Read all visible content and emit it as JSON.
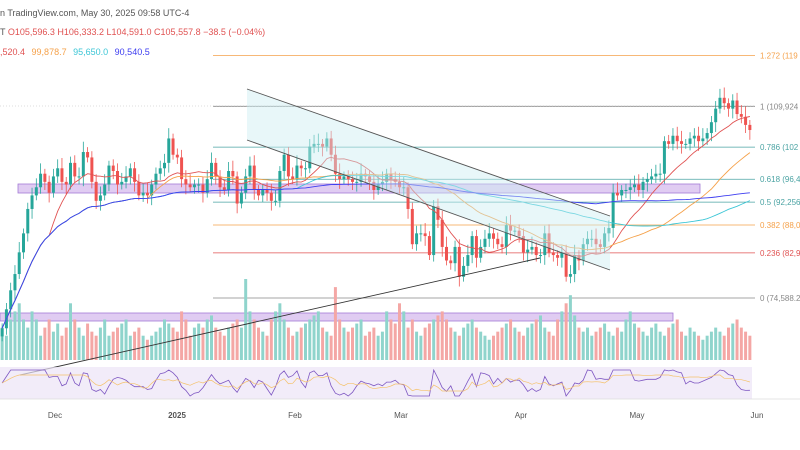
{
  "header": {
    "source": "n TradingView.com, May 30, 2025 09:58 UTC-4",
    "symbol_tail": "T",
    "open": "O105,596.3",
    "high": "H106,333.2",
    "low": "L104,591.0",
    "close": "C105,557.8",
    "change": "−38.5 (−0.04%)"
  },
  "ma_values": {
    "ma1": ",520.4",
    "ma2": "99,878.7",
    "ma3": "95,650.0",
    "ma4": "90,540.5"
  },
  "colors": {
    "up": "#26a69a",
    "down": "#ef5350",
    "fib_grey": "#888888",
    "fib_orange": "#f5a14a",
    "fib_teal": "#4aa3a3",
    "fib_red": "#e05252",
    "zone": "#c6a3e8",
    "ma1": "#e05252",
    "ma2": "#f5a14a",
    "ma3": "#3cc6d6",
    "ma4": "#3d3df0"
  },
  "chart_data": {
    "type": "candlestick",
    "y_range": [
      72000,
      124000
    ],
    "fib_levels": [
      {
        "ratio": "1.272",
        "label": "1.272 (119",
        "price": 119300
      },
      {
        "ratio": "1",
        "label": "1 (109,924",
        "price": 109924
      },
      {
        "ratio": "0.786",
        "label": "0.786 (102",
        "price": 102400
      },
      {
        "ratio": "0.618",
        "label": "0.618 (96,4",
        "price": 96480
      },
      {
        "ratio": "0.5",
        "label": "0.5 (92,256",
        "price": 92256
      },
      {
        "ratio": "0.382",
        "label": "0.382 (88,0",
        "price": 88040
      },
      {
        "ratio": "0.236",
        "label": "0.236 (82,9",
        "price": 82900
      },
      {
        "ratio": "0",
        "label": "0 (74,588.2",
        "price": 74588
      }
    ],
    "x_labels": [
      "Dec",
      "2025",
      "Feb",
      "Mar",
      "Apr",
      "May",
      "Jun"
    ],
    "closes": [
      69000,
      72500,
      76000,
      79000,
      83000,
      86500,
      91000,
      93500,
      95000,
      97500,
      96000,
      94000,
      97000,
      98500,
      96000,
      95500,
      99500,
      97000,
      97000,
      101500,
      100500,
      96000,
      92500,
      93500,
      95500,
      99000,
      98000,
      95500,
      96000,
      97000,
      98500,
      96000,
      93500,
      94000,
      93500,
      95500,
      97500,
      98500,
      99500,
      104000,
      101000,
      100500,
      96500,
      95500,
      95000,
      95500,
      95500,
      94000,
      96500,
      99500,
      97000,
      95000,
      94500,
      98000,
      97000,
      92000,
      94000,
      97000,
      99000,
      94500,
      93500,
      94500,
      94000,
      92500,
      92500,
      98000,
      101000,
      97000,
      96500,
      99000,
      98500,
      98500,
      102500,
      103000,
      103000,
      102500,
      104000,
      101000,
      97500,
      96500,
      97000,
      96500,
      96000,
      96000,
      97500,
      97000,
      96000,
      94500,
      95500,
      96000,
      97500,
      96500,
      96000,
      95000,
      95000,
      91000,
      84500,
      86500,
      86500,
      86000,
      82500,
      91500,
      89000,
      84000,
      81500,
      81000,
      84000,
      78500,
      80500,
      82500,
      86000,
      82000,
      84000,
      85500,
      86500,
      85500,
      84500,
      84000,
      88000,
      87000,
      87000,
      86000,
      83000,
      83500,
      84000,
      82500,
      82500,
      86500,
      83000,
      82500,
      82000,
      83000,
      78500,
      79000,
      82500,
      81500,
      84500,
      85500,
      85500,
      84500,
      84000,
      86500,
      87500,
      94000,
      93500,
      94500,
      94500,
      95000,
      95500,
      94500,
      96000,
      96500,
      97000,
      97500,
      97500,
      103500,
      103000,
      104500,
      103500,
      103000,
      103000,
      104000,
      104500,
      103500,
      104000,
      105000,
      107000,
      109500,
      111500,
      110500,
      109500,
      111000,
      108500,
      108000,
      106500,
      105557.8
    ],
    "volume_peaks": [
      0.4,
      0.3,
      0.5,
      0.6,
      0.7,
      0.5,
      0.4,
      0.6,
      0.5,
      0.3,
      0.4,
      0.5,
      0.35,
      0.45,
      0.3,
      0.4,
      0.7,
      0.5,
      0.4,
      0.3,
      0.45,
      0.35,
      0.3,
      0.4,
      0.5,
      0.3,
      0.35,
      0.4,
      0.45,
      0.5,
      0.3,
      0.35,
      0.4,
      0.3,
      0.25,
      0.3,
      0.35,
      0.4,
      0.5,
      0.45,
      0.4,
      0.35,
      0.6,
      0.5,
      0.3,
      0.4,
      0.45,
      0.4,
      0.5,
      0.55,
      0.4,
      0.35,
      0.3,
      0.4,
      0.45,
      0.5,
      0.4,
      1.0,
      0.6,
      0.5,
      0.4,
      0.35,
      0.3,
      0.5,
      0.6,
      0.7,
      0.5,
      0.4,
      0.3,
      0.35,
      0.4,
      0.45,
      0.5,
      0.55,
      0.6,
      0.4,
      0.35,
      0.3,
      0.9,
      0.5,
      0.4,
      0.35,
      0.4,
      0.45,
      0.5,
      0.3,
      0.35,
      0.4,
      0.3,
      0.35,
      0.6,
      0.5,
      0.45,
      0.7,
      0.6,
      0.4,
      0.5,
      0.35,
      0.3,
      0.4,
      0.45,
      0.5,
      0.55,
      0.6,
      0.5,
      0.4,
      0.35,
      0.3,
      0.4,
      0.45,
      0.5,
      0.4,
      0.35,
      0.3,
      0.25,
      0.3,
      0.35,
      0.4,
      0.45,
      0.5,
      0.4,
      0.35,
      0.3,
      0.4,
      0.45,
      0.5,
      0.55,
      0.4,
      0.35,
      0.3,
      0.5,
      0.6,
      0.7,
      0.8,
      0.55,
      0.4,
      0.35,
      0.4,
      0.3,
      0.35,
      0.4,
      0.45,
      0.35,
      0.3,
      0.4,
      0.35,
      0.5,
      0.6,
      0.45,
      0.4,
      0.35,
      0.3,
      0.4,
      0.45,
      0.35,
      0.3,
      0.4,
      0.45,
      0.5,
      0.35,
      0.3,
      0.4,
      0.35,
      0.3,
      0.25,
      0.3,
      0.35,
      0.4,
      0.35,
      0.3,
      0.4,
      0.45,
      0.5,
      0.4,
      0.35,
      0.3,
      0.4,
      0.35,
      0.3,
      0.35,
      0.4,
      0.45,
      0.3,
      0.35
    ]
  }
}
